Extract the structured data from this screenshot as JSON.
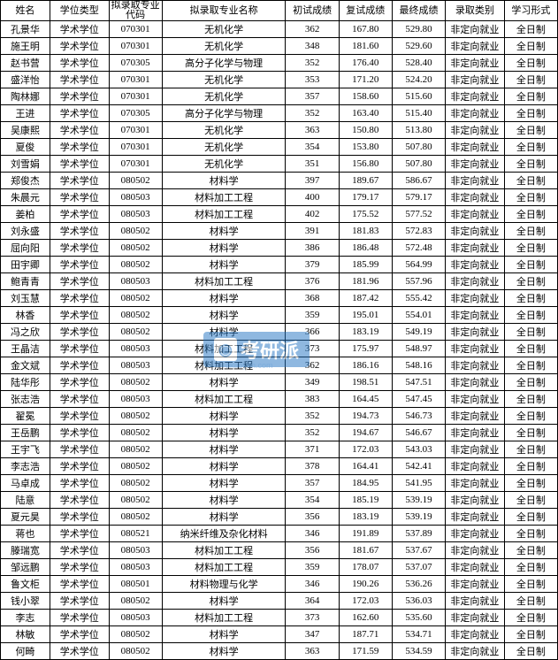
{
  "table": {
    "columns": [
      {
        "label": "姓名",
        "class": "col-name"
      },
      {
        "label": "学位类型",
        "class": "col-degree"
      },
      {
        "label": "拟录取专业\n代码",
        "class": "col-code",
        "multiline": true
      },
      {
        "label": "拟录取专业名称",
        "class": "col-major"
      },
      {
        "label": "初试成绩",
        "class": "col-score1"
      },
      {
        "label": "复试成绩",
        "class": "col-score2"
      },
      {
        "label": "最终成绩",
        "class": "col-score3"
      },
      {
        "label": "录取类别",
        "class": "col-cat"
      },
      {
        "label": "学习形式",
        "class": "col-form"
      }
    ],
    "rows": [
      [
        "孔景华",
        "学术学位",
        "070301",
        "无机化学",
        "362",
        "167.80",
        "529.80",
        "非定向就业",
        "全日制"
      ],
      [
        "施王明",
        "学术学位",
        "070301",
        "无机化学",
        "348",
        "181.60",
        "529.60",
        "非定向就业",
        "全日制"
      ],
      [
        "赵书营",
        "学术学位",
        "070305",
        "高分子化学与物理",
        "352",
        "176.40",
        "528.40",
        "非定向就业",
        "全日制"
      ],
      [
        "盛洋怡",
        "学术学位",
        "070301",
        "无机化学",
        "353",
        "171.20",
        "524.20",
        "非定向就业",
        "全日制"
      ],
      [
        "陶林娜",
        "学术学位",
        "070301",
        "无机化学",
        "357",
        "158.60",
        "515.60",
        "非定向就业",
        "全日制"
      ],
      [
        "王进",
        "学术学位",
        "070305",
        "高分子化学与物理",
        "352",
        "163.40",
        "515.40",
        "非定向就业",
        "全日制"
      ],
      [
        "吴康熙",
        "学术学位",
        "070301",
        "无机化学",
        "363",
        "150.80",
        "513.80",
        "非定向就业",
        "全日制"
      ],
      [
        "夏俊",
        "学术学位",
        "070301",
        "无机化学",
        "354",
        "153.80",
        "507.80",
        "非定向就业",
        "全日制"
      ],
      [
        "刘雪娟",
        "学术学位",
        "070301",
        "无机化学",
        "351",
        "156.80",
        "507.80",
        "非定向就业",
        "全日制"
      ],
      [
        "郑俊杰",
        "学术学位",
        "080502",
        "材料学",
        "397",
        "189.67",
        "586.67",
        "非定向就业",
        "全日制"
      ],
      [
        "朱晨元",
        "学术学位",
        "080503",
        "材料加工工程",
        "400",
        "179.17",
        "579.17",
        "非定向就业",
        "全日制"
      ],
      [
        "姜柏",
        "学术学位",
        "080503",
        "材料加工工程",
        "402",
        "175.52",
        "577.52",
        "非定向就业",
        "全日制"
      ],
      [
        "刘永盛",
        "学术学位",
        "080502",
        "材料学",
        "391",
        "181.83",
        "572.83",
        "非定向就业",
        "全日制"
      ],
      [
        "屈向阳",
        "学术学位",
        "080502",
        "材料学",
        "386",
        "186.48",
        "572.48",
        "非定向就业",
        "全日制"
      ],
      [
        "田宇卿",
        "学术学位",
        "080502",
        "材料学",
        "379",
        "185.99",
        "564.99",
        "非定向就业",
        "全日制"
      ],
      [
        "鲍青青",
        "学术学位",
        "080503",
        "材料加工工程",
        "376",
        "181.96",
        "557.96",
        "非定向就业",
        "全日制"
      ],
      [
        "刘玉慧",
        "学术学位",
        "080502",
        "材料学",
        "368",
        "187.42",
        "555.42",
        "非定向就业",
        "全日制"
      ],
      [
        "林香",
        "学术学位",
        "080502",
        "材料学",
        "359",
        "195.01",
        "554.01",
        "非定向就业",
        "全日制"
      ],
      [
        "冯之欣",
        "学术学位",
        "080502",
        "材料学",
        "366",
        "183.19",
        "549.19",
        "非定向就业",
        "全日制"
      ],
      [
        "王晶洁",
        "学术学位",
        "080503",
        "材料加工工程",
        "373",
        "175.97",
        "548.97",
        "非定向就业",
        "全日制"
      ],
      [
        "金文斌",
        "学术学位",
        "080503",
        "材料加工工程",
        "362",
        "186.16",
        "548.16",
        "非定向就业",
        "全日制"
      ],
      [
        "陆华彤",
        "学术学位",
        "080502",
        "材料学",
        "349",
        "198.51",
        "547.51",
        "非定向就业",
        "全日制"
      ],
      [
        "张志浩",
        "学术学位",
        "080503",
        "材料加工工程",
        "383",
        "164.45",
        "547.45",
        "非定向就业",
        "全日制"
      ],
      [
        "翟冕",
        "学术学位",
        "080502",
        "材料学",
        "352",
        "194.73",
        "546.73",
        "非定向就业",
        "全日制"
      ],
      [
        "王岳鹏",
        "学术学位",
        "080502",
        "材料学",
        "352",
        "194.67",
        "546.67",
        "非定向就业",
        "全日制"
      ],
      [
        "王宇飞",
        "学术学位",
        "080502",
        "材料学",
        "371",
        "172.03",
        "543.03",
        "非定向就业",
        "全日制"
      ],
      [
        "李志浩",
        "学术学位",
        "080502",
        "材料学",
        "378",
        "164.41",
        "542.41",
        "非定向就业",
        "全日制"
      ],
      [
        "马卓成",
        "学术学位",
        "080502",
        "材料学",
        "357",
        "184.95",
        "541.95",
        "非定向就业",
        "全日制"
      ],
      [
        "陆意",
        "学术学位",
        "080502",
        "材料学",
        "354",
        "185.19",
        "539.19",
        "非定向就业",
        "全日制"
      ],
      [
        "夏元昊",
        "学术学位",
        "080502",
        "材料学",
        "356",
        "183.19",
        "539.19",
        "非定向就业",
        "全日制"
      ],
      [
        "蒋也",
        "学术学位",
        "080521",
        "纳米纤维及杂化材料",
        "346",
        "191.89",
        "537.89",
        "非定向就业",
        "全日制"
      ],
      [
        "滕瑞宽",
        "学术学位",
        "080503",
        "材料加工工程",
        "356",
        "181.67",
        "537.67",
        "非定向就业",
        "全日制"
      ],
      [
        "邹远鹏",
        "学术学位",
        "080503",
        "材料加工工程",
        "359",
        "178.07",
        "537.07",
        "非定向就业",
        "全日制"
      ],
      [
        "鲁文柜",
        "学术学位",
        "080501",
        "材料物理与化学",
        "346",
        "190.26",
        "536.26",
        "非定向就业",
        "全日制"
      ],
      [
        "钱小翠",
        "学术学位",
        "080502",
        "材料学",
        "364",
        "172.03",
        "536.03",
        "非定向就业",
        "全日制"
      ],
      [
        "李志",
        "学术学位",
        "080503",
        "材料加工工程",
        "373",
        "162.60",
        "535.60",
        "非定向就业",
        "全日制"
      ],
      [
        "林敏",
        "学术学位",
        "080502",
        "材料学",
        "347",
        "187.71",
        "534.71",
        "非定向就业",
        "全日制"
      ],
      [
        "何畸",
        "学术学位",
        "080502",
        "材料学",
        "363",
        "171.59",
        "534.59",
        "非定向就业",
        "全日制"
      ]
    ],
    "border_color": "#000000",
    "background_color": "#ffffff",
    "font_size": 11
  },
  "watermark": {
    "text": "考研派",
    "subtext": "okaoyan.com",
    "bg_color": "#2274c2",
    "text_color": "#ffffff"
  }
}
